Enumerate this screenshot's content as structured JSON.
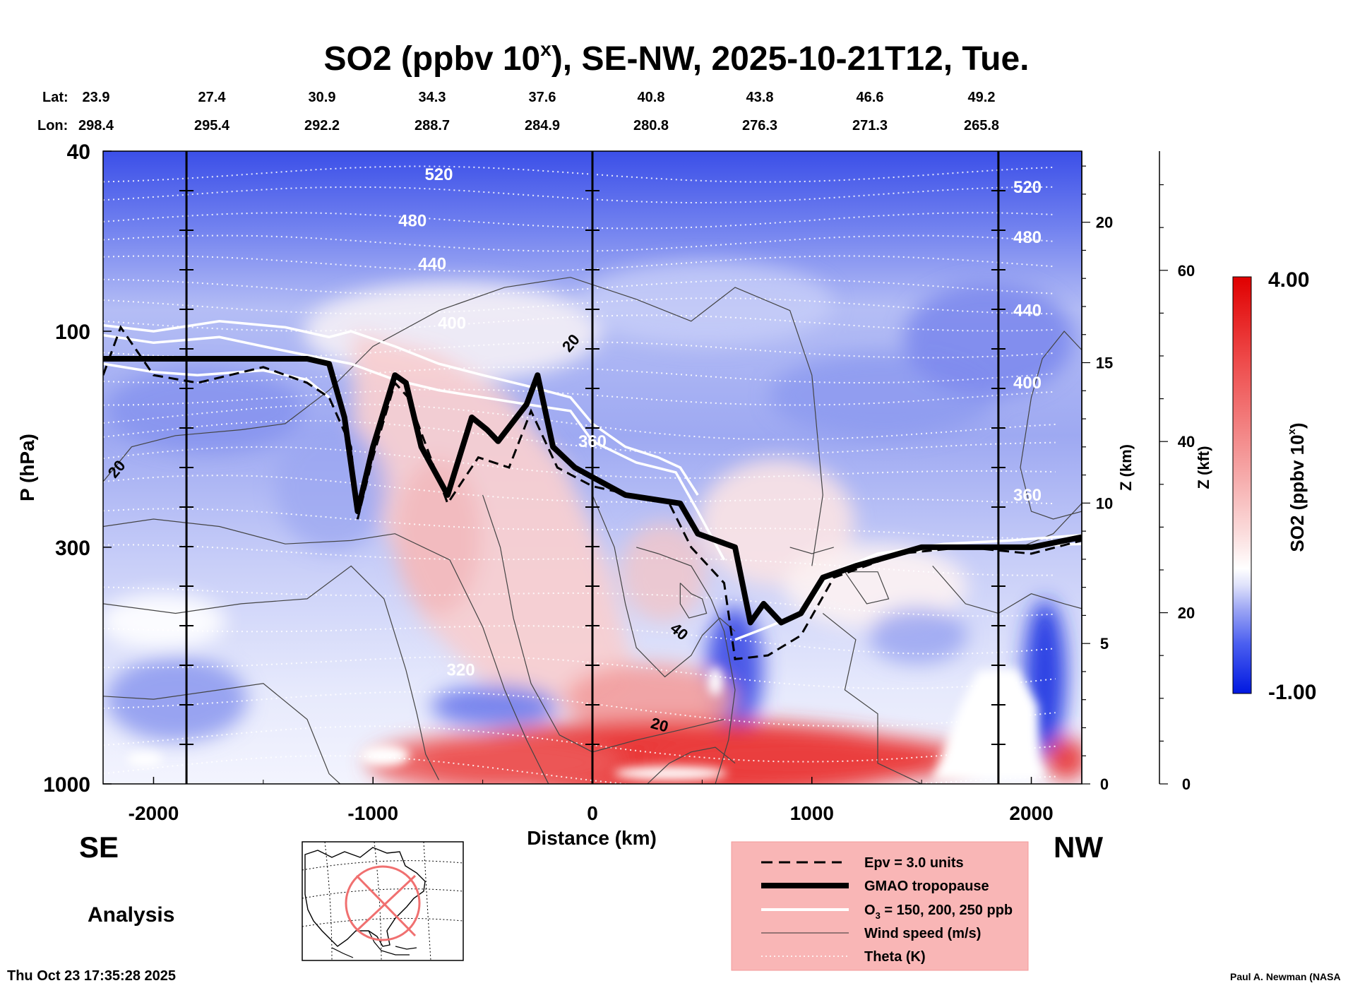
{
  "chart_data": {
    "type": "heatmap",
    "title": {
      "prefix": "SO2 (ppbv 10",
      "exponent": "x",
      "suffix": "), SE-NW, 2025-10-21T12, Tue."
    },
    "xlabel": "Distance (km)",
    "ylabel": "P (hPa)",
    "z_km_label": "Z (km)",
    "z_kft_label": "Z (kft)",
    "direction_left": "SE",
    "direction_right": "NW",
    "product_label": "Analysis",
    "timestamp": "Thu Oct 23 17:35:28 2025",
    "credit": "Paul A. Newman (NASA",
    "xlim": [
      -2230,
      2230
    ],
    "ylim_hpa": [
      1000,
      40
    ],
    "y_scale": "log",
    "x_ticks": [
      -2000,
      -1000,
      0,
      1000,
      2000
    ],
    "x_tick_labels": [
      "-2000",
      "-1000",
      "0",
      "1000",
      "2000"
    ],
    "p_ticks": [
      40,
      100,
      300,
      1000
    ],
    "p_tick_labels": [
      "40",
      "100",
      "300",
      "1000"
    ],
    "z_km_ticks": [
      0,
      5,
      10,
      15,
      20
    ],
    "z_km_tick_labels": [
      "0",
      "5",
      "10",
      "15",
      "20"
    ],
    "z_kft_ticks": [
      0,
      20,
      40,
      60
    ],
    "z_kft_tick_labels": [
      "0",
      "20",
      "40",
      "60"
    ],
    "lat_label": "Lat:",
    "lon_label": "Lon:",
    "lat_values": [
      "23.9",
      "27.4",
      "30.9",
      "34.3",
      "37.6",
      "40.8",
      "43.8",
      "46.6",
      "49.2"
    ],
    "lon_values": [
      "298.4",
      "295.4",
      "292.2",
      "288.7",
      "284.9",
      "280.8",
      "276.3",
      "271.3",
      "265.8"
    ],
    "vertical_lines_km": [
      -1850,
      0,
      1850
    ],
    "theta_levels": [
      {
        "label": "520",
        "p": 45
      },
      {
        "label": "480",
        "p": 57
      },
      {
        "label": "440",
        "p": 71
      },
      {
        "label": "400",
        "p": 96
      },
      {
        "label": "360",
        "p": 175
      },
      {
        "label": "320",
        "p": 560
      }
    ],
    "theta_right_labels": [
      {
        "label": "520",
        "p": 48
      },
      {
        "label": "480",
        "p": 62
      },
      {
        "label": "440",
        "p": 90
      },
      {
        "label": "400",
        "p": 130
      },
      {
        "label": "360",
        "p": 230
      }
    ],
    "tropopause": [
      {
        "x": -2230,
        "p": 115
      },
      {
        "x": -1300,
        "p": 115
      },
      {
        "x": -1200,
        "p": 118
      },
      {
        "x": -1130,
        "p": 155
      },
      {
        "x": -1070,
        "p": 250
      },
      {
        "x": -1000,
        "p": 180
      },
      {
        "x": -900,
        "p": 125
      },
      {
        "x": -850,
        "p": 130
      },
      {
        "x": -780,
        "p": 180
      },
      {
        "x": -660,
        "p": 230
      },
      {
        "x": -550,
        "p": 155
      },
      {
        "x": -480,
        "p": 165
      },
      {
        "x": -430,
        "p": 175
      },
      {
        "x": -300,
        "p": 145
      },
      {
        "x": -250,
        "p": 125
      },
      {
        "x": -180,
        "p": 180
      },
      {
        "x": -80,
        "p": 200
      },
      {
        "x": 0,
        "p": 210
      },
      {
        "x": 150,
        "p": 230
      },
      {
        "x": 400,
        "p": 240
      },
      {
        "x": 480,
        "p": 280
      },
      {
        "x": 650,
        "p": 300
      },
      {
        "x": 720,
        "p": 440
      },
      {
        "x": 780,
        "p": 400
      },
      {
        "x": 860,
        "p": 440
      },
      {
        "x": 950,
        "p": 420
      },
      {
        "x": 1050,
        "p": 350
      },
      {
        "x": 1200,
        "p": 330
      },
      {
        "x": 1500,
        "p": 300
      },
      {
        "x": 2000,
        "p": 300
      },
      {
        "x": 2230,
        "p": 285
      }
    ],
    "epv_3": [
      {
        "x": -2230,
        "p": 125
      },
      {
        "x": -2150,
        "p": 98
      },
      {
        "x": -2000,
        "p": 125
      },
      {
        "x": -1800,
        "p": 130
      },
      {
        "x": -1500,
        "p": 120
      },
      {
        "x": -1300,
        "p": 130
      },
      {
        "x": -1200,
        "p": 140
      },
      {
        "x": -1100,
        "p": 180
      },
      {
        "x": -1070,
        "p": 260
      },
      {
        "x": -1000,
        "p": 190
      },
      {
        "x": -900,
        "p": 130
      },
      {
        "x": -840,
        "p": 140
      },
      {
        "x": -660,
        "p": 240
      },
      {
        "x": -520,
        "p": 190
      },
      {
        "x": -380,
        "p": 200
      },
      {
        "x": -280,
        "p": 150
      },
      {
        "x": -160,
        "p": 200
      },
      {
        "x": 0,
        "p": 220
      },
      {
        "x": 350,
        "p": 240
      },
      {
        "x": 450,
        "p": 300
      },
      {
        "x": 600,
        "p": 360
      },
      {
        "x": 650,
        "p": 530
      },
      {
        "x": 800,
        "p": 520
      },
      {
        "x": 950,
        "p": 470
      },
      {
        "x": 1100,
        "p": 350
      },
      {
        "x": 1400,
        "p": 310
      },
      {
        "x": 1700,
        "p": 300
      },
      {
        "x": 2000,
        "p": 310
      },
      {
        "x": 2230,
        "p": 290
      }
    ],
    "so2_colorbar": {
      "min": -1.0,
      "max": 4.0,
      "min_label": "-1.00",
      "max_label": "4.00",
      "label_prefix": "SO2 (ppbv 10",
      "label_exponent": "x",
      "label_suffix": ")"
    },
    "wind_labels": [
      {
        "label": "20",
        "x": -2150,
        "p": 205
      },
      {
        "label": "20",
        "x": -80,
        "p": 108
      },
      {
        "label": "40",
        "x": 380,
        "p": 470
      },
      {
        "label": "20",
        "x": 300,
        "p": 760
      }
    ],
    "inset_map_title": "",
    "legend": [
      {
        "label": "Epv = 3.0 units",
        "style": "dashed"
      },
      {
        "label": "GMAO tropopause",
        "style": "thick"
      },
      {
        "label": "O",
        "sub": "3",
        "label_rest": " = 150, 200, 250 ppb",
        "style": "white"
      },
      {
        "label": "Wind speed (m/s)",
        "style": "thin"
      },
      {
        "label": "Theta (K)",
        "style": "dotted"
      }
    ],
    "colors": {
      "so2_low": "#0018e0",
      "so2_mid": "#ffffff",
      "so2_high": "#e00000",
      "legend_bg": "#f9b6b6"
    }
  }
}
